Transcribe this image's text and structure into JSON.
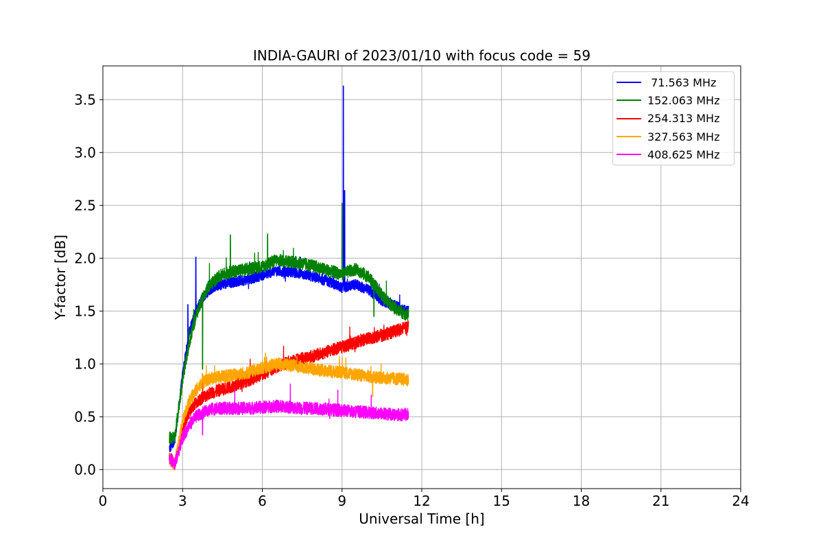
{
  "chart_data": {
    "type": "line",
    "title": "INDIA-GAURI of 2023/01/10 with focus code = 59",
    "xlabel": "Universal Time [h]",
    "ylabel": "Y-factor [dB]",
    "xlim": [
      0,
      24
    ],
    "ylim": [
      -0.18,
      3.82
    ],
    "xticks": [
      0,
      3,
      6,
      9,
      12,
      15,
      18,
      21,
      24
    ],
    "xtick_labels": [
      "0",
      "3",
      "6",
      "9",
      "12",
      "15",
      "18",
      "21",
      "24"
    ],
    "yticks": [
      0.0,
      0.5,
      1.0,
      1.5,
      2.0,
      2.5,
      3.0,
      3.5
    ],
    "ytick_labels": [
      "0.0",
      "0.5",
      "1.0",
      "1.5",
      "2.0",
      "2.5",
      "3.0",
      "3.5"
    ],
    "grid": true,
    "legend_position": "top-right",
    "series": [
      {
        "name": " 71.563 MHz",
        "color": "#0000ff",
        "x": [
          2.5,
          2.7,
          3.0,
          3.25,
          3.5,
          3.75,
          4.0,
          4.25,
          4.5,
          5.0,
          5.5,
          6.0,
          6.5,
          7.0,
          7.5,
          8.0,
          8.5,
          9.0,
          9.5,
          10.0,
          10.5,
          11.0,
          11.5
        ],
        "values": [
          0.2,
          0.25,
          0.9,
          1.3,
          1.5,
          1.62,
          1.7,
          1.74,
          1.75,
          1.78,
          1.8,
          1.84,
          1.88,
          1.87,
          1.85,
          1.82,
          1.78,
          1.72,
          1.75,
          1.7,
          1.6,
          1.55,
          1.5
        ],
        "spikes": [
          {
            "x": 3.2,
            "y": 1.56
          },
          {
            "x": 3.5,
            "y": 2.01
          },
          {
            "x": 9.05,
            "y": 3.63
          },
          {
            "x": 9.1,
            "y": 2.64
          }
        ]
      },
      {
        "name": "152.063 MHz",
        "color": "#008000",
        "x": [
          2.5,
          2.7,
          3.0,
          3.25,
          3.5,
          3.75,
          4.0,
          4.25,
          4.5,
          5.0,
          5.5,
          6.0,
          6.5,
          7.0,
          7.5,
          8.0,
          8.5,
          9.0,
          9.5,
          10.0,
          10.5,
          11.0,
          11.5
        ],
        "values": [
          0.3,
          0.3,
          0.85,
          1.2,
          1.45,
          1.62,
          1.74,
          1.8,
          1.85,
          1.88,
          1.9,
          1.92,
          1.98,
          1.97,
          1.95,
          1.92,
          1.88,
          1.85,
          1.9,
          1.82,
          1.65,
          1.52,
          1.46
        ],
        "spikes": [
          {
            "x": 3.75,
            "y": 0.95
          },
          {
            "x": 4.8,
            "y": 2.22
          },
          {
            "x": 6.2,
            "y": 2.23
          },
          {
            "x": 9.0,
            "y": 2.52
          },
          {
            "x": 10.2,
            "y": 1.45
          }
        ]
      },
      {
        "name": "254.313 MHz",
        "color": "#ff0000",
        "x": [
          2.5,
          2.7,
          3.0,
          3.25,
          3.5,
          3.75,
          4.0,
          4.5,
          5.0,
          5.5,
          6.0,
          6.5,
          7.0,
          7.5,
          8.0,
          8.5,
          9.0,
          9.5,
          10.0,
          10.5,
          11.0,
          11.5
        ],
        "values": [
          0.12,
          0.05,
          0.4,
          0.55,
          0.63,
          0.68,
          0.72,
          0.76,
          0.8,
          0.85,
          0.9,
          0.97,
          1.02,
          1.05,
          1.08,
          1.12,
          1.16,
          1.2,
          1.24,
          1.27,
          1.31,
          1.35
        ],
        "spikes": []
      },
      {
        "name": "327.563 MHz",
        "color": "#ffa500",
        "x": [
          2.5,
          2.7,
          3.0,
          3.25,
          3.5,
          3.75,
          4.0,
          4.5,
          5.0,
          5.5,
          6.0,
          6.5,
          7.0,
          7.5,
          8.0,
          8.5,
          9.0,
          9.5,
          10.0,
          10.5,
          11.0,
          11.5
        ],
        "values": [
          0.1,
          0.05,
          0.45,
          0.65,
          0.75,
          0.82,
          0.86,
          0.88,
          0.9,
          0.92,
          0.96,
          1.0,
          0.99,
          0.97,
          0.95,
          0.93,
          0.92,
          0.9,
          0.88,
          0.87,
          0.86,
          0.85
        ],
        "spikes": [
          {
            "x": 10.15,
            "y": 0.69
          }
        ]
      },
      {
        "name": "408.625 MHz",
        "color": "#ff00ff",
        "x": [
          2.5,
          2.7,
          3.0,
          3.25,
          3.5,
          3.75,
          4.0,
          4.5,
          5.0,
          5.5,
          6.0,
          6.5,
          7.0,
          7.5,
          8.0,
          8.5,
          9.0,
          9.5,
          10.0,
          10.5,
          11.0,
          11.5
        ],
        "values": [
          0.1,
          0.05,
          0.3,
          0.42,
          0.5,
          0.54,
          0.57,
          0.58,
          0.58,
          0.58,
          0.59,
          0.6,
          0.59,
          0.58,
          0.58,
          0.57,
          0.56,
          0.55,
          0.54,
          0.53,
          0.52,
          0.52
        ],
        "spikes": [
          {
            "x": 3.75,
            "y": 0.33
          }
        ]
      }
    ]
  }
}
